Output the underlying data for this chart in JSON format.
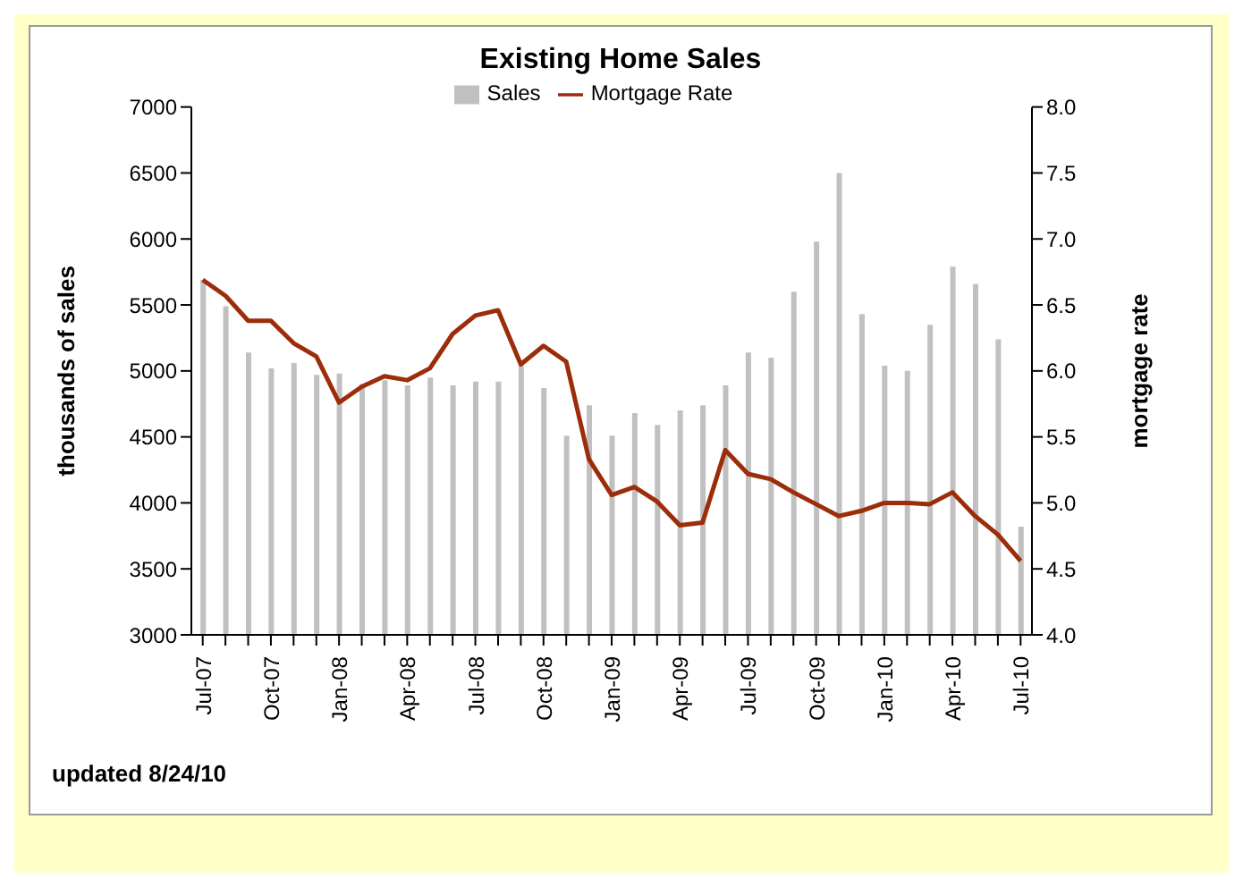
{
  "chart_data": {
    "type": "bar",
    "title": "Existing Home Sales",
    "ylabel": "thousands of sales",
    "y2label": "mortgage rate",
    "categories": [
      "Jul-07",
      null,
      null,
      "Oct-07",
      null,
      null,
      "Jan-08",
      null,
      null,
      "Apr-08",
      null,
      null,
      "Jul-08",
      null,
      null,
      "Oct-08",
      null,
      null,
      "Jan-09",
      null,
      null,
      "Apr-09",
      null,
      null,
      "Jul-09",
      null,
      null,
      "Oct-09",
      null,
      null,
      "Jan-10",
      null,
      null,
      "Apr-10",
      null,
      null,
      "Jul-10"
    ],
    "series": [
      {
        "name": "Sales",
        "color": "#c0c0c0",
        "values": [
          5690,
          5490,
          5140,
          5020,
          5060,
          4970,
          4980,
          4900,
          4930,
          4890,
          4950,
          4890,
          4920,
          4920,
          5040,
          4870,
          4510,
          4740,
          4510,
          4680,
          4590,
          4700,
          4740,
          4890,
          5140,
          5100,
          5600,
          5980,
          6500,
          5430,
          5040,
          5000,
          5350,
          5790,
          5660,
          5240,
          3820
        ]
      },
      {
        "name": "Mortgage Rate",
        "type": "line",
        "axis": "y2",
        "color": "#9b2d0a",
        "values": [
          6.69,
          6.57,
          6.38,
          6.38,
          6.21,
          6.11,
          5.76,
          5.88,
          5.96,
          5.93,
          6.02,
          6.28,
          6.42,
          6.46,
          6.05,
          6.19,
          6.07,
          5.33,
          5.06,
          5.12,
          5.01,
          4.83,
          4.85,
          5.4,
          5.22,
          5.18,
          5.08,
          4.99,
          4.9,
          4.94,
          5.0,
          5.0,
          4.99,
          5.08,
          4.9,
          4.76,
          4.56
        ]
      }
    ],
    "ylim": [
      3000,
      7000
    ],
    "yticks": [
      3000,
      3500,
      4000,
      4500,
      5000,
      5500,
      6000,
      6500,
      7000
    ],
    "y2lim": [
      4,
      8
    ],
    "y2ticks": [
      {
        "value": 4,
        "label": "4.0"
      },
      {
        "value": 4.5,
        "label": "4.5"
      },
      {
        "value": 5,
        "label": "5.0"
      },
      {
        "value": 5.5,
        "label": "5.5"
      },
      {
        "value": 6,
        "label": "6.0"
      },
      {
        "value": 6.5,
        "label": "6.5"
      },
      {
        "value": 7,
        "label": "7.0"
      },
      {
        "value": 7.5,
        "label": "7.5"
      },
      {
        "value": 8,
        "label": "8.0"
      }
    ],
    "legend": "top",
    "grid": false,
    "marker": "none",
    "line_style": "solid",
    "annotations": [
      "updated 8/24/10"
    ]
  }
}
